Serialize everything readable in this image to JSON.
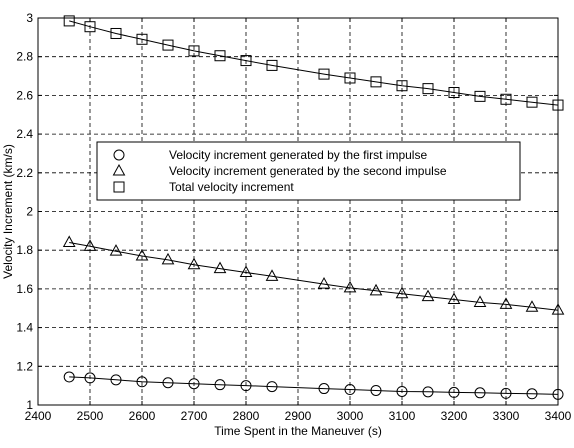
{
  "chart_data": {
    "type": "line",
    "xlabel": "Time Spent in the Maneuver (s)",
    "ylabel": "Velocity Increment (km/s)",
    "xlim": [
      2400,
      3400
    ],
    "ylim": [
      1,
      3
    ],
    "xticks": [
      "2400",
      "2500",
      "2600",
      "2700",
      "2800",
      "2900",
      "3000",
      "3100",
      "3200",
      "3300",
      "3400"
    ],
    "yticks": [
      "1",
      "1.2",
      "1.4",
      "1.6",
      "1.8",
      "2",
      "2.2",
      "2.4",
      "2.6",
      "2.8",
      "3"
    ],
    "grid": true,
    "legend_position": "center-left",
    "series": [
      {
        "name": "Velocity increment generated by the first impulse",
        "marker": "circle",
        "x": [
          2460,
          2500,
          2550,
          2600,
          2650,
          2700,
          2750,
          2800,
          2850,
          2950,
          3000,
          3050,
          3100,
          3150,
          3200,
          3250,
          3300,
          3350,
          3400
        ],
        "y": [
          1.145,
          1.14,
          1.13,
          1.12,
          1.115,
          1.11,
          1.105,
          1.1,
          1.095,
          1.085,
          1.08,
          1.075,
          1.07,
          1.068,
          1.065,
          1.063,
          1.06,
          1.058,
          1.055
        ]
      },
      {
        "name": "Velocity increment generated by the second impulse",
        "marker": "triangle",
        "x": [
          2460,
          2500,
          2550,
          2600,
          2650,
          2700,
          2750,
          2800,
          2850,
          2950,
          3000,
          3050,
          3100,
          3150,
          3200,
          3250,
          3300,
          3350,
          3400
        ],
        "y": [
          1.84,
          1.82,
          1.795,
          1.77,
          1.75,
          1.725,
          1.705,
          1.685,
          1.665,
          1.625,
          1.605,
          1.59,
          1.575,
          1.56,
          1.545,
          1.53,
          1.52,
          1.505,
          1.49
        ]
      },
      {
        "name": "Total velocity increment",
        "marker": "square",
        "x": [
          2460,
          2500,
          2550,
          2600,
          2650,
          2700,
          2750,
          2800,
          2850,
          2950,
          3000,
          3050,
          3100,
          3150,
          3200,
          3250,
          3300,
          3350,
          3400
        ],
        "y": [
          2.985,
          2.955,
          2.92,
          2.89,
          2.86,
          2.83,
          2.805,
          2.78,
          2.755,
          2.71,
          2.69,
          2.67,
          2.65,
          2.635,
          2.615,
          2.595,
          2.58,
          2.565,
          2.55
        ]
      }
    ]
  }
}
